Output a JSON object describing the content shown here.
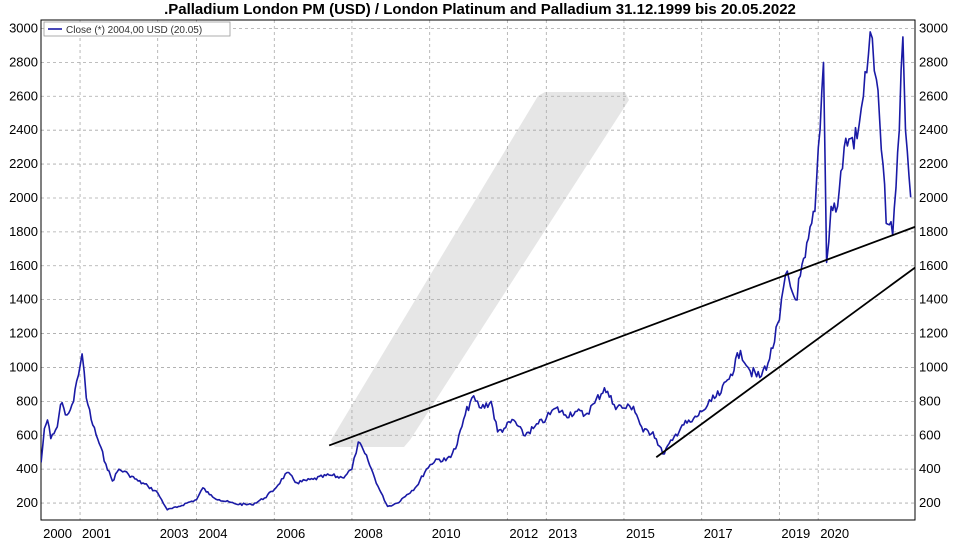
{
  "chart_data": {
    "type": "line",
    "title": ".Palladium London PM (USD) / London Platinum and Palladium 31.12.1999 bis 20.05.2022",
    "legend": {
      "label": "Close (*) 2004,00 USD (20.05)",
      "placement": "top-left"
    },
    "x_range": [
      "1999-12-31",
      "2022-05-20"
    ],
    "ylim": [
      100,
      3050
    ],
    "y_ticks": [
      200,
      400,
      600,
      800,
      1000,
      1200,
      1400,
      1600,
      1800,
      2000,
      2200,
      2400,
      2600,
      2800,
      3000
    ],
    "y_tick_labels": [
      "200",
      "400",
      "600",
      "800",
      "1000",
      "1200",
      "1400",
      "1600",
      "1800",
      "2000",
      "2200",
      "2400",
      "2600",
      "2800",
      "3000"
    ],
    "x_ticks": [
      "2000",
      "2001",
      "2003",
      "2004",
      "2006",
      "2008",
      "2010",
      "2012",
      "2013",
      "2015",
      "2017",
      "2019",
      "2020"
    ],
    "grid": true,
    "colors": {
      "series": "#1a1aa6",
      "trend": "#000000",
      "grid": "#a8a8a8",
      "watermark": "#e6e6e6"
    },
    "series": [
      {
        "values": [
          {
            "x": "2000-01-01",
            "y": 440
          },
          {
            "x": "2000-02-01",
            "y": 640
          },
          {
            "x": "2000-03-01",
            "y": 690
          },
          {
            "x": "2000-04-01",
            "y": 580
          },
          {
            "x": "2000-05-01",
            "y": 610
          },
          {
            "x": "2000-06-01",
            "y": 650
          },
          {
            "x": "2000-07-01",
            "y": 780
          },
          {
            "x": "2000-08-01",
            "y": 760
          },
          {
            "x": "2000-09-01",
            "y": 720
          },
          {
            "x": "2000-10-01",
            "y": 750
          },
          {
            "x": "2000-11-01",
            "y": 800
          },
          {
            "x": "2000-12-01",
            "y": 920
          },
          {
            "x": "2001-01-20",
            "y": 1080
          },
          {
            "x": "2001-03-01",
            "y": 820
          },
          {
            "x": "2001-05-01",
            "y": 660
          },
          {
            "x": "2001-07-01",
            "y": 550
          },
          {
            "x": "2001-09-01",
            "y": 430
          },
          {
            "x": "2001-11-01",
            "y": 330
          },
          {
            "x": "2002-01-01",
            "y": 400
          },
          {
            "x": "2002-04-01",
            "y": 370
          },
          {
            "x": "2002-07-01",
            "y": 330
          },
          {
            "x": "2002-10-01",
            "y": 300
          },
          {
            "x": "2003-01-01",
            "y": 260
          },
          {
            "x": "2003-04-01",
            "y": 160
          },
          {
            "x": "2003-07-01",
            "y": 175
          },
          {
            "x": "2003-10-01",
            "y": 200
          },
          {
            "x": "2004-01-01",
            "y": 220
          },
          {
            "x": "2004-03-01",
            "y": 290
          },
          {
            "x": "2004-05-01",
            "y": 250
          },
          {
            "x": "2004-08-01",
            "y": 220
          },
          {
            "x": "2005-01-01",
            "y": 195
          },
          {
            "x": "2005-06-01",
            "y": 190
          },
          {
            "x": "2005-10-01",
            "y": 230
          },
          {
            "x": "2006-01-01",
            "y": 280
          },
          {
            "x": "2006-05-01",
            "y": 380
          },
          {
            "x": "2006-08-01",
            "y": 320
          },
          {
            "x": "2007-01-01",
            "y": 340
          },
          {
            "x": "2007-06-01",
            "y": 365
          },
          {
            "x": "2007-10-01",
            "y": 350
          },
          {
            "x": "2008-01-01",
            "y": 400
          },
          {
            "x": "2008-03-01",
            "y": 560
          },
          {
            "x": "2008-06-01",
            "y": 450
          },
          {
            "x": "2008-09-01",
            "y": 300
          },
          {
            "x": "2008-12-01",
            "y": 180
          },
          {
            "x": "2009-03-01",
            "y": 200
          },
          {
            "x": "2009-06-01",
            "y": 250
          },
          {
            "x": "2009-09-01",
            "y": 300
          },
          {
            "x": "2009-12-01",
            "y": 400
          },
          {
            "x": "2010-03-01",
            "y": 460
          },
          {
            "x": "2010-06-01",
            "y": 450
          },
          {
            "x": "2010-09-01",
            "y": 520
          },
          {
            "x": "2010-12-01",
            "y": 720
          },
          {
            "x": "2011-02-01",
            "y": 820
          },
          {
            "x": "2011-05-01",
            "y": 760
          },
          {
            "x": "2011-08-01",
            "y": 800
          },
          {
            "x": "2011-10-01",
            "y": 620
          },
          {
            "x": "2011-12-01",
            "y": 640
          },
          {
            "x": "2012-03-01",
            "y": 690
          },
          {
            "x": "2012-06-01",
            "y": 600
          },
          {
            "x": "2012-09-01",
            "y": 640
          },
          {
            "x": "2013-01-01",
            "y": 700
          },
          {
            "x": "2013-04-01",
            "y": 760
          },
          {
            "x": "2013-07-01",
            "y": 720
          },
          {
            "x": "2013-10-01",
            "y": 740
          },
          {
            "x": "2014-01-01",
            "y": 720
          },
          {
            "x": "2014-04-01",
            "y": 790
          },
          {
            "x": "2014-07-01",
            "y": 880
          },
          {
            "x": "2014-10-01",
            "y": 780
          },
          {
            "x": "2015-01-01",
            "y": 760
          },
          {
            "x": "2015-04-01",
            "y": 770
          },
          {
            "x": "2015-07-01",
            "y": 620
          },
          {
            "x": "2015-10-01",
            "y": 620
          },
          {
            "x": "2016-01-01",
            "y": 490
          },
          {
            "x": "2016-04-01",
            "y": 570
          },
          {
            "x": "2016-07-01",
            "y": 660
          },
          {
            "x": "2016-10-01",
            "y": 680
          },
          {
            "x": "2017-01-01",
            "y": 740
          },
          {
            "x": "2017-04-01",
            "y": 800
          },
          {
            "x": "2017-07-01",
            "y": 850
          },
          {
            "x": "2017-10-01",
            "y": 960
          },
          {
            "x": "2018-01-01",
            "y": 1100
          },
          {
            "x": "2018-04-01",
            "y": 980
          },
          {
            "x": "2018-07-01",
            "y": 940
          },
          {
            "x": "2018-10-01",
            "y": 1050
          },
          {
            "x": "2019-01-01",
            "y": 1280
          },
          {
            "x": "2019-03-01",
            "y": 1550
          },
          {
            "x": "2019-06-01",
            "y": 1400
          },
          {
            "x": "2019-09-01",
            "y": 1650
          },
          {
            "x": "2019-12-01",
            "y": 1920
          },
          {
            "x": "2020-02-20",
            "y": 2800
          },
          {
            "x": "2020-03-20",
            "y": 1620
          },
          {
            "x": "2020-05-01",
            "y": 1950
          },
          {
            "x": "2020-07-01",
            "y": 1950
          },
          {
            "x": "2020-09-01",
            "y": 2300
          },
          {
            "x": "2020-11-01",
            "y": 2350
          },
          {
            "x": "2021-01-01",
            "y": 2350
          },
          {
            "x": "2021-03-01",
            "y": 2600
          },
          {
            "x": "2021-05-04",
            "y": 2980
          },
          {
            "x": "2021-07-01",
            "y": 2700
          },
          {
            "x": "2021-09-01",
            "y": 2200
          },
          {
            "x": "2021-10-01",
            "y": 1850
          },
          {
            "x": "2021-12-01",
            "y": 1780
          },
          {
            "x": "2022-02-01",
            "y": 2400
          },
          {
            "x": "2022-03-07",
            "y": 2950
          },
          {
            "x": "2022-04-01",
            "y": 2400
          },
          {
            "x": "2022-05-20",
            "y": 2004
          }
        ]
      }
    ],
    "trend_lines": [
      {
        "from": {
          "x": "2007-06-01",
          "y": 540
        },
        "to": {
          "x": "2022-07-01",
          "y": 1830
        }
      },
      {
        "from": {
          "x": "2015-11-01",
          "y": 470
        },
        "to": {
          "x": "2022-07-01",
          "y": 1590
        }
      }
    ]
  }
}
